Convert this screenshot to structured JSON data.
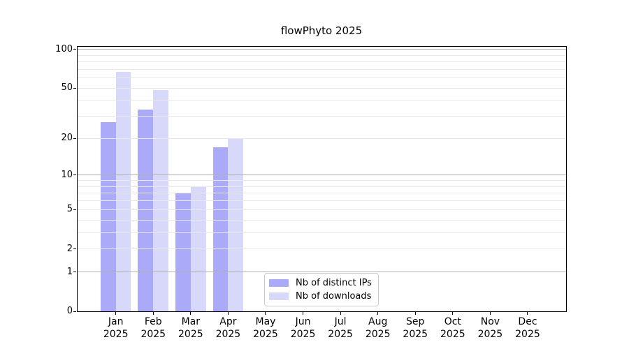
{
  "title": "flowPhyto 2025",
  "colors": {
    "bar_ips": "#aaaaf9",
    "bar_downloads": "#d8d8fa",
    "grid_major": "#b0b0b0",
    "grid_minor": "#e8e8e8",
    "axis": "#000000",
    "legend_border": "#cccccc",
    "background": "#ffffff"
  },
  "legend": {
    "items": [
      {
        "label": "Nb of distinct IPs",
        "color": "#aaaaf9"
      },
      {
        "label": "Nb of downloads",
        "color": "#d8d8fa"
      }
    ]
  },
  "y_axis": {
    "scale": "log1p",
    "tick_labels": [
      "100",
      "50",
      "20",
      "10",
      "5",
      "2",
      "1",
      "0"
    ],
    "tick_values": [
      100,
      50,
      20,
      10,
      5,
      2,
      1,
      0
    ],
    "major_gridlines": [
      1,
      10,
      100
    ],
    "minor_gridlines": [
      2,
      3,
      4,
      5,
      6,
      7,
      8,
      9,
      20,
      30,
      40,
      50,
      60,
      70,
      80,
      90
    ],
    "max": 105.9
  },
  "x_axis": {
    "categories": [
      {
        "month": "Jan",
        "year": "2025"
      },
      {
        "month": "Feb",
        "year": "2025"
      },
      {
        "month": "Mar",
        "year": "2025"
      },
      {
        "month": "Apr",
        "year": "2025"
      },
      {
        "month": "May",
        "year": "2025"
      },
      {
        "month": "Jun",
        "year": "2025"
      },
      {
        "month": "Jul",
        "year": "2025"
      },
      {
        "month": "Aug",
        "year": "2025"
      },
      {
        "month": "Sep",
        "year": "2025"
      },
      {
        "month": "Oct",
        "year": "2025"
      },
      {
        "month": "Nov",
        "year": "2025"
      },
      {
        "month": "Dec",
        "year": "2025"
      }
    ]
  },
  "chart_data": {
    "type": "bar",
    "title": "flowPhyto 2025",
    "categories": [
      "Jan 2025",
      "Feb 2025",
      "Mar 2025",
      "Apr 2025",
      "May 2025",
      "Jun 2025",
      "Jul 2025",
      "Aug 2025",
      "Sep 2025",
      "Oct 2025",
      "Nov 2025",
      "Dec 2025"
    ],
    "series": [
      {
        "name": "Nb of distinct IPs",
        "color": "#aaaaf9",
        "values": [
          27,
          34,
          7,
          17,
          0,
          0,
          0,
          0,
          0,
          0,
          0,
          0
        ]
      },
      {
        "name": "Nb of downloads",
        "color": "#d8d8fa",
        "values": [
          67,
          48,
          8,
          20,
          0,
          0,
          0,
          0,
          0,
          0,
          0,
          0
        ]
      }
    ],
    "xlabel": "",
    "ylabel": "",
    "ylim": [
      0,
      105.9
    ],
    "yscale": "log1p",
    "yticks": [
      0,
      1,
      2,
      5,
      10,
      20,
      50,
      100
    ],
    "grid": true,
    "grid_over_bars": true,
    "legend_position": "lower center"
  }
}
